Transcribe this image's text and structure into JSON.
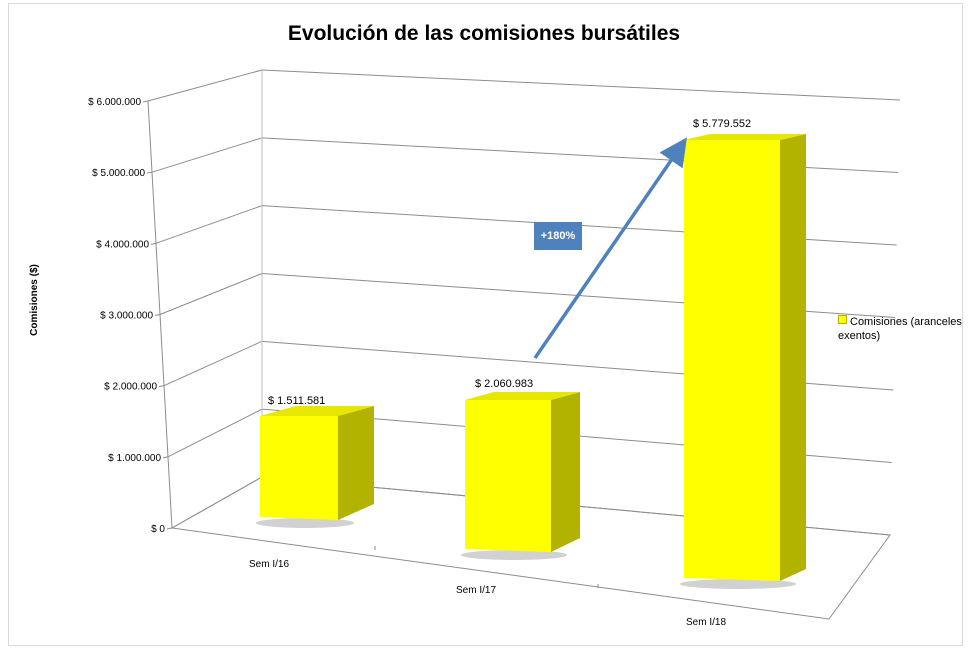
{
  "chart_data": {
    "type": "bar",
    "title": "Evolución de las comisiones bursátiles",
    "ylabel": "Comisiones ($)",
    "xlabel": "",
    "categories": [
      "Sem I/16",
      "Sem I/17",
      "Sem I/18"
    ],
    "series": [
      {
        "name": "Comisiones (aranceles exentos)",
        "values": [
          1511581,
          2060983,
          5779552
        ],
        "value_labels": [
          "$ 1.511.581",
          "$ 2.060.983",
          "$ 5.779.552"
        ],
        "color": "#ffff00"
      }
    ],
    "ylim": [
      0,
      6000000
    ],
    "yticks": [
      0,
      1000000,
      2000000,
      3000000,
      4000000,
      5000000,
      6000000
    ],
    "ytick_labels": [
      "$ 0",
      "$ 1.000.000",
      "$ 2.000.000",
      "$ 3.000.000",
      "$ 4.000.000",
      "$ 5.000.000",
      "$ 6.000.000"
    ],
    "grid": true,
    "legend": "right",
    "style": "3d-column",
    "annotations": [
      {
        "text": "+180%",
        "color": "#4f81bd"
      }
    ]
  }
}
